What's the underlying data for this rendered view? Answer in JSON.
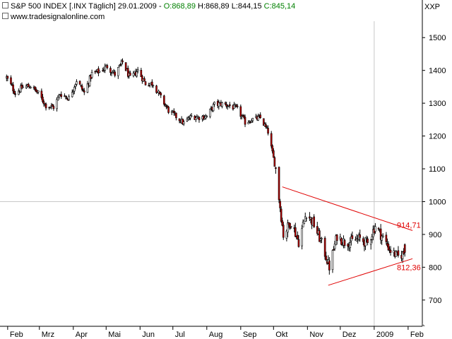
{
  "header": {
    "symbol": "S&P 500 INDEX [.INX  Täglich]",
    "date": "29.01.2009",
    "open": "O:868,89",
    "high": "H:868,89",
    "low": "L:844,15",
    "close": "C:845,14",
    "source": "www.tradesignalonline.com",
    "axis_unit": "XXP"
  },
  "colors": {
    "up": "#008000",
    "trendline": "#e00000",
    "grid": "#c8c8c8",
    "candle": "#000000",
    "candle_down_body": "#c00000"
  },
  "chart_data": {
    "type": "candlestick",
    "title": "S&P 500 INDEX [.INX  Täglich]",
    "xlabel": "",
    "ylabel": "XXP",
    "ylim": [
      620,
      1550
    ],
    "y_ticks": [
      700,
      800,
      900,
      1000,
      1100,
      1200,
      1300,
      1400,
      1500
    ],
    "x_ticks": [
      "Feb",
      "Mrz",
      "Apr",
      "Mai",
      "Jun",
      "Jul",
      "Aug",
      "Sep",
      "Okt",
      "Nov",
      "Dez",
      "2009",
      "Feb"
    ],
    "grid": {
      "horizontal_at": [
        1000
      ],
      "vertical_at": [
        "2009"
      ]
    },
    "series": [
      {
        "points": [
          [
            "2008-01-31",
            1378
          ],
          [
            "2008-02-08",
            1331
          ],
          [
            "2008-02-15",
            1349
          ],
          [
            "2008-02-22",
            1353
          ],
          [
            "2008-02-29",
            1330
          ],
          [
            "2008-03-07",
            1293
          ],
          [
            "2008-03-14",
            1288
          ],
          [
            "2008-03-20",
            1329
          ],
          [
            "2008-03-28",
            1315
          ],
          [
            "2008-04-04",
            1370
          ],
          [
            "2008-04-11",
            1332
          ],
          [
            "2008-04-18",
            1390
          ],
          [
            "2008-04-25",
            1397
          ],
          [
            "2008-05-02",
            1413
          ],
          [
            "2008-05-09",
            1388
          ],
          [
            "2008-05-16",
            1425
          ],
          [
            "2008-05-23",
            1375
          ],
          [
            "2008-05-30",
            1400
          ],
          [
            "2008-06-06",
            1360
          ],
          [
            "2008-06-13",
            1360
          ],
          [
            "2008-06-20",
            1317
          ],
          [
            "2008-06-27",
            1278
          ],
          [
            "2008-07-03",
            1262
          ],
          [
            "2008-07-11",
            1239
          ],
          [
            "2008-07-18",
            1260
          ],
          [
            "2008-07-25",
            1257
          ],
          [
            "2008-08-01",
            1260
          ],
          [
            "2008-08-08",
            1296
          ],
          [
            "2008-08-15",
            1298
          ],
          [
            "2008-08-22",
            1292
          ],
          [
            "2008-08-29",
            1282
          ],
          [
            "2008-09-05",
            1242
          ],
          [
            "2008-09-12",
            1251
          ],
          [
            "2008-09-19",
            1255
          ],
          [
            "2008-09-26",
            1213
          ],
          [
            "2008-10-03",
            1099
          ],
          [
            "2008-10-10",
            899
          ],
          [
            "2008-10-17",
            940
          ],
          [
            "2008-10-24",
            877
          ],
          [
            "2008-10-31",
            968
          ],
          [
            "2008-11-07",
            930
          ],
          [
            "2008-11-14",
            873
          ],
          [
            "2008-11-21",
            800
          ],
          [
            "2008-11-28",
            896
          ],
          [
            "2008-12-05",
            876
          ],
          [
            "2008-12-12",
            879
          ],
          [
            "2008-12-19",
            887
          ],
          [
            "2008-12-26",
            872
          ],
          [
            "2009-01-02",
            927
          ],
          [
            "2009-01-09",
            890
          ],
          [
            "2009-01-16",
            850
          ],
          [
            "2009-01-23",
            832
          ],
          [
            "2009-01-29",
            845
          ]
        ]
      }
    ],
    "trendlines": [
      {
        "label": "914,71",
        "from": [
          "2008-10-09",
          1045
        ],
        "to": [
          "2009-02-05",
          912
        ]
      },
      {
        "label": "812,36",
        "from": [
          "2008-11-20",
          745
        ],
        "to": [
          "2009-02-05",
          826
        ]
      }
    ]
  }
}
